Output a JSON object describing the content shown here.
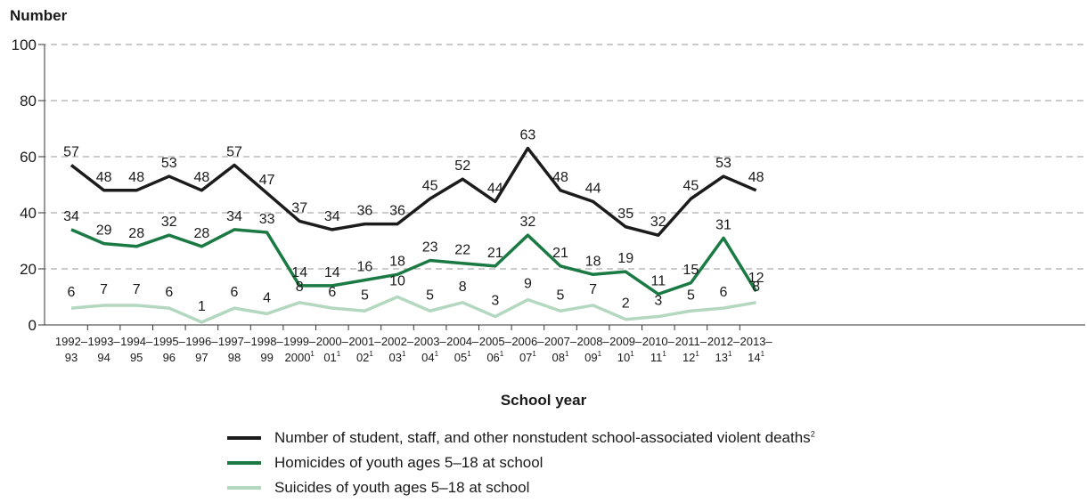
{
  "chart_data": {
    "type": "line",
    "ylabel": "Number",
    "xlabel": "School year",
    "ylim": [
      0,
      100
    ],
    "yticks": [
      0,
      20,
      40,
      60,
      80,
      100
    ],
    "grid": "horizontal dashed",
    "legend_position": "bottom",
    "categories": [
      {
        "line1": "1992–",
        "line2": "93",
        "sup": ""
      },
      {
        "line1": "1993–",
        "line2": "94",
        "sup": ""
      },
      {
        "line1": "1994–",
        "line2": "95",
        "sup": ""
      },
      {
        "line1": "1995–",
        "line2": "96",
        "sup": ""
      },
      {
        "line1": "1996–",
        "line2": "97",
        "sup": ""
      },
      {
        "line1": "1997–",
        "line2": "98",
        "sup": ""
      },
      {
        "line1": "1998–",
        "line2": "99",
        "sup": ""
      },
      {
        "line1": "1999–",
        "line2": "2000",
        "sup": "1"
      },
      {
        "line1": "2000–",
        "line2": "01",
        "sup": "1"
      },
      {
        "line1": "2001–",
        "line2": "02",
        "sup": "1"
      },
      {
        "line1": "2002–",
        "line2": "03",
        "sup": "1"
      },
      {
        "line1": "2003–",
        "line2": "04",
        "sup": "1"
      },
      {
        "line1": "2004–",
        "line2": "05",
        "sup": "1"
      },
      {
        "line1": "2005–",
        "line2": "06",
        "sup": "1"
      },
      {
        "line1": "2006–",
        "line2": "07",
        "sup": "1"
      },
      {
        "line1": "2007–",
        "line2": "08",
        "sup": "1"
      },
      {
        "line1": "2008–",
        "line2": "09",
        "sup": "1"
      },
      {
        "line1": "2009–",
        "line2": "10",
        "sup": "1"
      },
      {
        "line1": "2010–",
        "line2": "11",
        "sup": "1"
      },
      {
        "line1": "2011–",
        "line2": "12",
        "sup": "1"
      },
      {
        "line1": "2012–",
        "line2": "13",
        "sup": "1"
      },
      {
        "line1": "2013–",
        "line2": "14",
        "sup": "1"
      }
    ],
    "series": [
      {
        "name": "Number of student, staff, and other nonstudent school-associated violent deaths",
        "name_sup": "2",
        "color": "#1c1c1c",
        "values": [
          57,
          48,
          48,
          53,
          48,
          57,
          47,
          37,
          34,
          36,
          36,
          45,
          52,
          44,
          63,
          48,
          44,
          35,
          32,
          45,
          53,
          48
        ]
      },
      {
        "name": "Homicides of youth ages 5–18 at school",
        "name_sup": "",
        "color": "#1b7a43",
        "values": [
          34,
          29,
          28,
          32,
          28,
          34,
          33,
          14,
          14,
          16,
          18,
          23,
          22,
          21,
          32,
          21,
          18,
          19,
          11,
          15,
          31,
          12
        ]
      },
      {
        "name": "Suicides of youth ages 5–18 at school",
        "name_sup": "",
        "color": "#b3d8bf",
        "values": [
          6,
          7,
          7,
          6,
          1,
          6,
          4,
          8,
          6,
          5,
          10,
          5,
          8,
          3,
          9,
          5,
          7,
          2,
          3,
          5,
          6,
          8
        ]
      }
    ]
  }
}
